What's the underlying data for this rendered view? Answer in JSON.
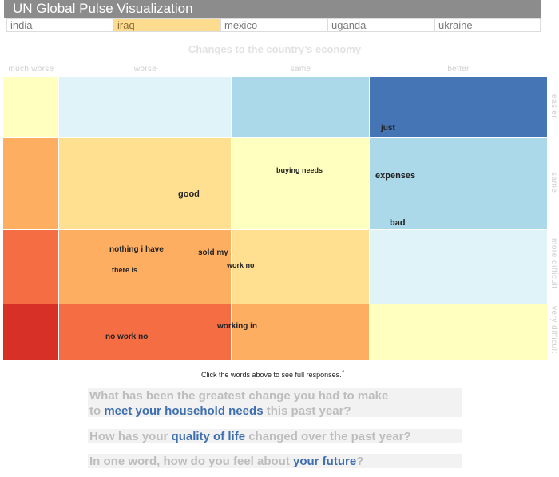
{
  "app": {
    "title": "UN Global Pulse Visualization"
  },
  "tabs": [
    {
      "label": "india",
      "active": false
    },
    {
      "label": "iraq",
      "active": true
    },
    {
      "label": "mexico",
      "active": false
    },
    {
      "label": "uganda",
      "active": false
    },
    {
      "label": "ukraine",
      "active": false
    }
  ],
  "chart": {
    "title": "Changes to the country's economy",
    "columns": [
      "much worse",
      "worse",
      "same",
      "better"
    ],
    "rows": [
      "easier",
      "same",
      "more difficult",
      "very difficult"
    ],
    "colors": {
      "dark_blue": "#4575b4",
      "light_blue": "#abd9e9",
      "pale_blue": "#e0f3f8",
      "pale_yellow": "#ffffbf",
      "yellow": "#fee090",
      "orange": "#fdae61",
      "red_orange": "#f46d43",
      "red": "#d73027"
    },
    "cell_colors": [
      [
        "pale_yellow",
        "pale_blue",
        "light_blue",
        "dark_blue"
      ],
      [
        "orange",
        "yellow",
        "pale_yellow",
        "light_blue"
      ],
      [
        "red_orange",
        "orange",
        "yellow",
        "pale_blue"
      ],
      [
        "red",
        "red_orange",
        "orange",
        "pale_yellow"
      ]
    ],
    "words": [
      {
        "text": "just"
      },
      {
        "text": "buying needs"
      },
      {
        "text": "expenses"
      },
      {
        "text": "good"
      },
      {
        "text": "bad"
      },
      {
        "text": "nothing i have"
      },
      {
        "text": "sold my"
      },
      {
        "text": "there is"
      },
      {
        "text": "work no"
      },
      {
        "text": "working in"
      },
      {
        "text": "no work no"
      }
    ]
  },
  "hint": "Click the words above to see full responses.",
  "hint_icon": "cursor-arrow-icon",
  "questions": [
    {
      "pre": "What has been the greatest change you had to make",
      "pre2": "to ",
      "highlight": "meet your household needs",
      "post": " this past year?"
    },
    {
      "pre": "How has your ",
      "highlight": "quality of life",
      "post": " changed over the past year?"
    },
    {
      "pre": "In one word, how do you feel about ",
      "highlight": "your future",
      "post": "?"
    }
  ]
}
